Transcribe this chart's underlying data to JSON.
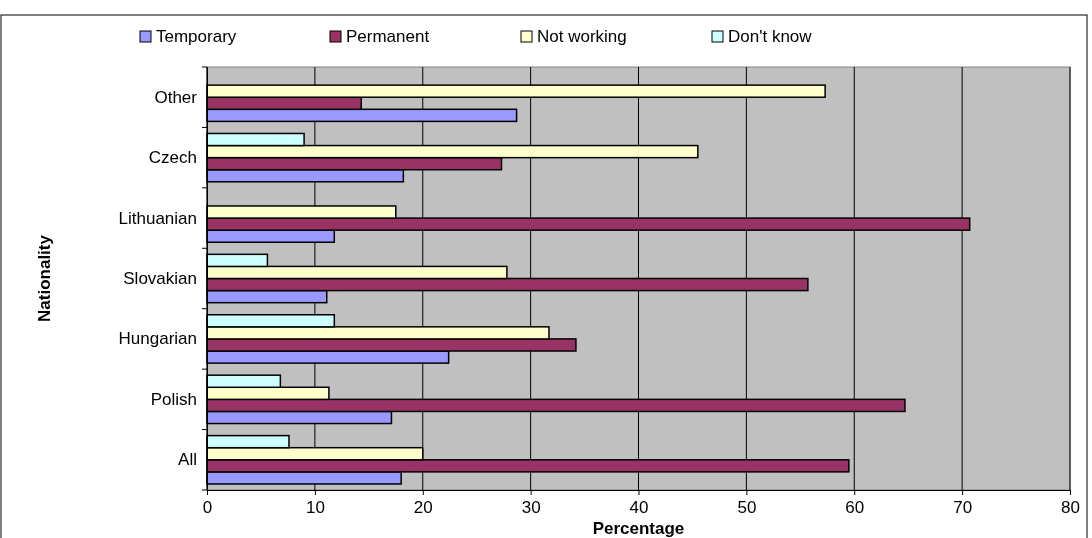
{
  "chart_data": {
    "type": "bar",
    "orientation": "horizontal",
    "xlabel": "Percentage",
    "ylabel": "Nationality",
    "categories": [
      "Other",
      "Czech",
      "Lithuanian",
      "Slovakian",
      "Hungarian",
      "Polish",
      "All"
    ],
    "series": [
      {
        "name": "Temporary",
        "color": "#9999ff",
        "values": [
          28.7,
          18.2,
          11.8,
          11.1,
          22.4,
          17.1,
          18.0
        ]
      },
      {
        "name": "Permanent",
        "color": "#993366",
        "values": [
          14.3,
          27.3,
          70.7,
          55.7,
          34.2,
          64.7,
          59.5
        ]
      },
      {
        "name": "Not working",
        "color": "#ffffcc",
        "values": [
          57.3,
          45.5,
          17.5,
          27.8,
          31.7,
          11.3,
          20.0
        ]
      },
      {
        "name": "Don't know",
        "color": "#ccffff",
        "values": [
          null,
          9.0,
          null,
          5.6,
          11.8,
          6.8,
          7.6
        ]
      }
    ],
    "xlim": [
      0,
      80
    ],
    "xticks": [
      0,
      10,
      20,
      30,
      40,
      50,
      60,
      70,
      80
    ],
    "grid": "x",
    "legend": "top"
  }
}
